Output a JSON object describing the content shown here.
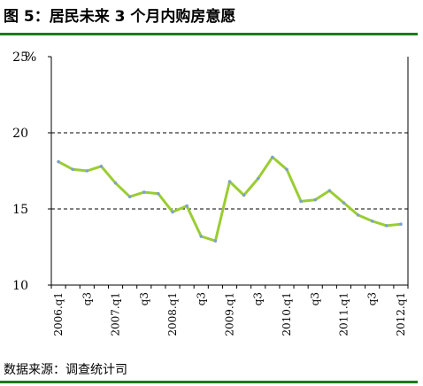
{
  "header": {
    "title": "图 5：居民未来 3 个月内购房意愿"
  },
  "footer": {
    "source": "数据来源：调查统计司"
  },
  "colors": {
    "accent": "#1b7a1b",
    "series": "#9acd32",
    "marker": "#7f9fd0"
  },
  "chart_data": {
    "type": "line",
    "unit_label": "%",
    "ylim": [
      10,
      25
    ],
    "yticks": [
      "10",
      "15",
      "20",
      "25"
    ],
    "dashed_gridlines": [
      15,
      20
    ],
    "x": [
      "2006.q1",
      "q2",
      "q3",
      "q4",
      "2007.q1",
      "q2",
      "q3",
      "q4",
      "2008.q1",
      "q2",
      "q3",
      "q4",
      "2009.q1",
      "q2",
      "q3",
      "q4",
      "2010.q1",
      "q2",
      "q3",
      "q4",
      "2011.q1",
      "q2",
      "q3",
      "q4",
      "2012.q1"
    ],
    "xtick_labels": [
      "2006.q1",
      "q3",
      "2007.q1",
      "q3",
      "2008.q1",
      "q3",
      "2009.q1",
      "q3",
      "2010.q1",
      "q3",
      "2011.q1",
      "q3",
      "2012.q1"
    ],
    "series": [
      {
        "values": [
          18.1,
          17.6,
          17.5,
          17.8,
          16.7,
          15.8,
          16.1,
          16.0,
          14.8,
          15.2,
          13.2,
          12.9,
          16.8,
          15.9,
          17.0,
          18.4,
          17.6,
          15.5,
          15.6,
          16.2,
          15.4,
          14.6,
          14.2,
          13.9,
          14.0
        ]
      }
    ]
  }
}
